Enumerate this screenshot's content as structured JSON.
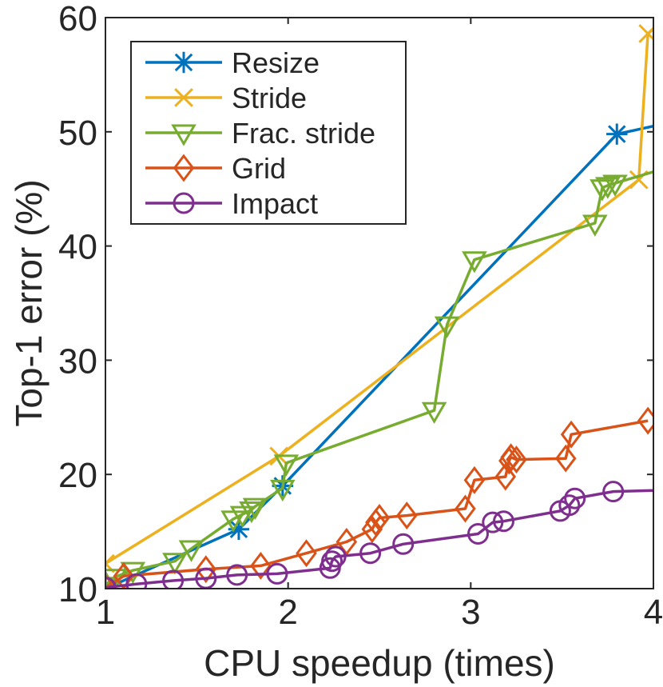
{
  "chart_data": {
    "type": "line",
    "title": "",
    "xlabel": "CPU speedup (times)",
    "ylabel": "Top-1 error (%)",
    "xlim": [
      1,
      4
    ],
    "ylim": [
      10,
      60
    ],
    "xticks": [
      1,
      2,
      3,
      4
    ],
    "yticks": [
      10,
      20,
      30,
      40,
      50,
      60
    ],
    "grid": false,
    "legend_position": "top-left",
    "series": [
      {
        "name": "Resize",
        "color": "#0072BD",
        "marker": "asterisk",
        "x": [
          1.0,
          1.73,
          1.97,
          3.8,
          4.0
        ],
        "y": [
          10.0,
          15.2,
          19.0,
          49.8,
          50.5
        ],
        "markers": [
          true,
          true,
          true,
          true,
          false
        ]
      },
      {
        "name": "Stride",
        "color": "#EDB120",
        "marker": "x",
        "x": [
          1.0,
          1.95,
          3.92,
          3.97,
          4.0
        ],
        "y": [
          12.2,
          21.6,
          45.8,
          58.6,
          59.0
        ],
        "markers": [
          true,
          true,
          true,
          true,
          false
        ]
      },
      {
        "name": "Frac. stride",
        "color": "#77AC30",
        "marker": "triangle-down",
        "x": [
          1.0,
          1.05,
          1.15,
          1.38,
          1.47,
          1.7,
          1.75,
          1.8,
          1.82,
          1.97,
          1.99,
          2.8,
          2.87,
          3.02,
          3.68,
          3.72,
          3.75,
          3.79,
          4.0
        ],
        "y": [
          10.3,
          11.0,
          11.6,
          12.4,
          13.5,
          16.1,
          16.5,
          16.9,
          17.2,
          18.8,
          21.0,
          25.6,
          33.1,
          38.8,
          42.0,
          45.1,
          45.3,
          45.5,
          46.5
        ],
        "markers": [
          true,
          true,
          true,
          true,
          true,
          true,
          true,
          true,
          true,
          true,
          true,
          true,
          true,
          true,
          true,
          true,
          true,
          true,
          false
        ]
      },
      {
        "name": "Grid",
        "color": "#D95319",
        "marker": "diamond",
        "x": [
          1.0,
          1.1,
          1.55,
          1.85,
          2.1,
          2.32,
          2.46,
          2.48,
          2.5,
          2.65,
          2.97,
          3.02,
          3.19,
          3.21,
          3.22,
          3.25,
          3.52,
          3.55,
          3.97
        ],
        "y": [
          10.1,
          11.1,
          11.7,
          12.0,
          13.1,
          14.1,
          15.2,
          15.8,
          16.2,
          16.4,
          17.0,
          19.5,
          19.8,
          21.2,
          21.5,
          21.3,
          21.4,
          23.5,
          24.7
        ],
        "markers": [
          true,
          true,
          true,
          true,
          true,
          true,
          true,
          true,
          true,
          true,
          true,
          true,
          true,
          true,
          true,
          true,
          true,
          true,
          true
        ]
      },
      {
        "name": "Impact",
        "color": "#7E2F8E",
        "marker": "circle",
        "x": [
          1.0,
          1.17,
          1.37,
          1.55,
          1.72,
          1.94,
          2.23,
          2.24,
          2.26,
          2.45,
          2.63,
          3.04,
          3.12,
          3.18,
          3.49,
          3.54,
          3.57,
          3.78,
          4.0
        ],
        "y": [
          10.1,
          10.4,
          10.7,
          10.9,
          11.2,
          11.3,
          11.8,
          12.4,
          12.8,
          13.1,
          13.9,
          14.8,
          15.8,
          15.9,
          16.8,
          17.3,
          17.9,
          18.5,
          18.6
        ],
        "markers": [
          true,
          true,
          true,
          true,
          true,
          true,
          true,
          true,
          true,
          true,
          true,
          true,
          true,
          true,
          true,
          true,
          true,
          true,
          false
        ]
      }
    ]
  }
}
